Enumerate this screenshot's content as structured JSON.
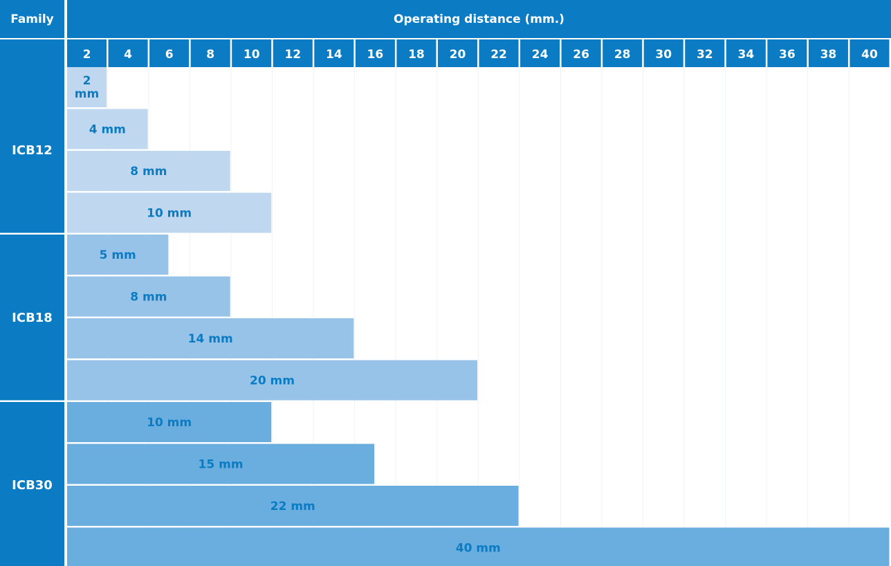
{
  "header": {
    "family_label": "Family",
    "title": "Operating distance (mm.)"
  },
  "chart_data": {
    "type": "bar",
    "orientation": "horizontal",
    "title": "Operating distance (mm.)",
    "xlabel": "Operating distance (mm.)",
    "ylabel": "Family",
    "x_ticks": [
      "2",
      "4",
      "6",
      "8",
      "10",
      "12",
      "14",
      "16",
      "18",
      "20",
      "22",
      "24",
      "26",
      "28",
      "30",
      "32",
      "34",
      "36",
      "38",
      "40"
    ],
    "xlim": [
      0,
      40
    ],
    "groups": [
      {
        "family": "ICB12",
        "color": "#c0d8ef",
        "bars": [
          {
            "value": 2,
            "label": "2 mm"
          },
          {
            "value": 4,
            "label": "4 mm"
          },
          {
            "value": 8,
            "label": "8 mm"
          },
          {
            "value": 10,
            "label": "10 mm"
          }
        ]
      },
      {
        "family": "ICB18",
        "color": "#98c3e8",
        "bars": [
          {
            "value": 5,
            "label": "5 mm"
          },
          {
            "value": 8,
            "label": "8 mm"
          },
          {
            "value": 14,
            "label": "14 mm"
          },
          {
            "value": 20,
            "label": "20 mm"
          }
        ]
      },
      {
        "family": "ICB30",
        "color": "#6aaee0",
        "bars": [
          {
            "value": 10,
            "label": "10 mm"
          },
          {
            "value": 15,
            "label": "15 mm"
          },
          {
            "value": 22,
            "label": "22 mm"
          },
          {
            "value": 40,
            "label": "40 mm"
          }
        ]
      }
    ],
    "colors": {
      "header": "#0b7cc3",
      "label_text": "#0b7cc3",
      "header_text": "#ffffff"
    }
  }
}
